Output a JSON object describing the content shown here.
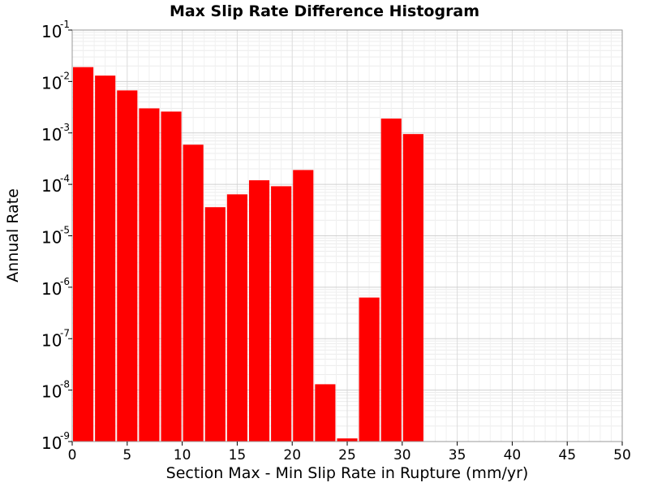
{
  "chart_data": {
    "type": "bar",
    "title": "Max Slip Rate Difference Histogram",
    "xlabel": "Section Max - Min Slip Rate in Rupture (mm/yr)",
    "ylabel": "Annual Rate",
    "xlim": [
      0,
      50
    ],
    "ylim": [
      1e-09,
      0.1
    ],
    "yscale": "log",
    "grid": true,
    "x_ticks": [
      0,
      5,
      10,
      15,
      20,
      25,
      30,
      35,
      40,
      45,
      50
    ],
    "y_ticks": [
      {
        "base": "10",
        "exp": "-9",
        "value": 1e-09
      },
      {
        "base": "10",
        "exp": "-8",
        "value": 1e-08
      },
      {
        "base": "10",
        "exp": "-7",
        "value": 1e-07
      },
      {
        "base": "10",
        "exp": "-6",
        "value": 1e-06
      },
      {
        "base": "10",
        "exp": "-5",
        "value": 1e-05
      },
      {
        "base": "10",
        "exp": "-4",
        "value": 0.0001
      },
      {
        "base": "10",
        "exp": "-3",
        "value": 0.001
      },
      {
        "base": "10",
        "exp": "-2",
        "value": 0.01
      },
      {
        "base": "10",
        "exp": "-1",
        "value": 0.1
      }
    ],
    "bin_width": 2,
    "bars": [
      {
        "x0": 0,
        "value": 0.019
      },
      {
        "x0": 2,
        "value": 0.013
      },
      {
        "x0": 4,
        "value": 0.0067
      },
      {
        "x0": 6,
        "value": 0.003
      },
      {
        "x0": 8,
        "value": 0.0026
      },
      {
        "x0": 10,
        "value": 0.00059
      },
      {
        "x0": 12,
        "value": 3.6e-05
      },
      {
        "x0": 14,
        "value": 6.4e-05
      },
      {
        "x0": 16,
        "value": 0.00012
      },
      {
        "x0": 18,
        "value": 9.2e-05
      },
      {
        "x0": 20,
        "value": 0.00019
      },
      {
        "x0": 22,
        "value": 1.3e-08
      },
      {
        "x0": 24,
        "value": 1.15e-09
      },
      {
        "x0": 26,
        "value": 6.3e-07
      },
      {
        "x0": 28,
        "value": 0.0019
      },
      {
        "x0": 30,
        "value": 0.00095
      }
    ],
    "bar_color": "#ff0000"
  }
}
